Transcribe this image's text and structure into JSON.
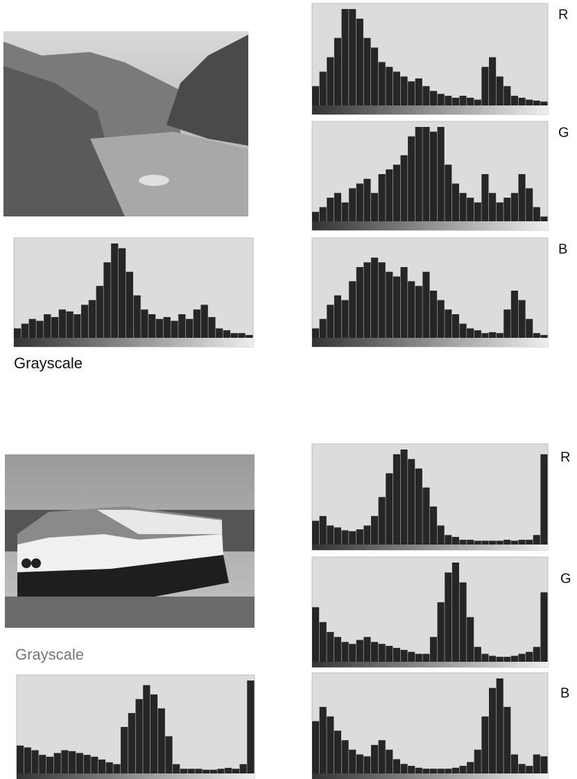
{
  "sections": [
    {
      "grayscale": {
        "label": "Grayscale",
        "values": [
          10,
          15,
          20,
          18,
          25,
          22,
          30,
          28,
          25,
          35,
          40,
          55,
          80,
          100,
          95,
          70,
          45,
          30,
          25,
          20,
          22,
          18,
          25,
          20,
          30,
          35,
          22,
          10,
          8,
          5,
          5,
          3
        ]
      },
      "channels": [
        {
          "label": "R",
          "values": [
            20,
            35,
            50,
            70,
            100,
            100,
            90,
            70,
            60,
            45,
            40,
            35,
            30,
            25,
            28,
            20,
            15,
            12,
            10,
            8,
            10,
            8,
            6,
            40,
            50,
            30,
            20,
            10,
            8,
            6,
            5,
            4
          ]
        },
        {
          "label": "G",
          "values": [
            10,
            15,
            25,
            30,
            20,
            35,
            40,
            45,
            30,
            50,
            55,
            60,
            70,
            90,
            100,
            100,
            95,
            100,
            60,
            40,
            30,
            25,
            20,
            50,
            30,
            20,
            25,
            30,
            50,
            35,
            15,
            5
          ]
        },
        {
          "label": "B",
          "values": [
            10,
            20,
            35,
            45,
            40,
            60,
            75,
            80,
            85,
            80,
            70,
            65,
            75,
            60,
            55,
            70,
            50,
            40,
            30,
            25,
            15,
            10,
            8,
            5,
            6,
            5,
            30,
            50,
            40,
            20,
            5,
            3
          ]
        }
      ]
    },
    {
      "grayscale": {
        "label": "Grayscale",
        "values": [
          30,
          28,
          25,
          20,
          18,
          22,
          25,
          24,
          22,
          20,
          18,
          15,
          12,
          10,
          50,
          65,
          80,
          95,
          85,
          70,
          40,
          10,
          5,
          5,
          5,
          4,
          4,
          5,
          6,
          5,
          10,
          100
        ]
      },
      "channels": [
        {
          "label": "R",
          "values": [
            25,
            30,
            20,
            18,
            15,
            14,
            16,
            20,
            30,
            50,
            75,
            95,
            100,
            90,
            80,
            60,
            40,
            20,
            10,
            8,
            5,
            5,
            4,
            4,
            4,
            4,
            5,
            4,
            5,
            5,
            10,
            95
          ]
        },
        {
          "label": "G",
          "values": [
            55,
            40,
            30,
            25,
            20,
            18,
            22,
            25,
            20,
            18,
            16,
            14,
            12,
            10,
            8,
            8,
            25,
            60,
            90,
            100,
            80,
            45,
            15,
            8,
            6,
            5,
            5,
            6,
            8,
            10,
            15,
            70
          ]
        },
        {
          "label": "B",
          "values": [
            55,
            70,
            60,
            45,
            35,
            25,
            20,
            18,
            30,
            35,
            25,
            15,
            10,
            8,
            6,
            5,
            5,
            5,
            5,
            6,
            8,
            12,
            25,
            60,
            90,
            100,
            70,
            20,
            10,
            8,
            20,
            18
          ]
        }
      ]
    }
  ]
}
